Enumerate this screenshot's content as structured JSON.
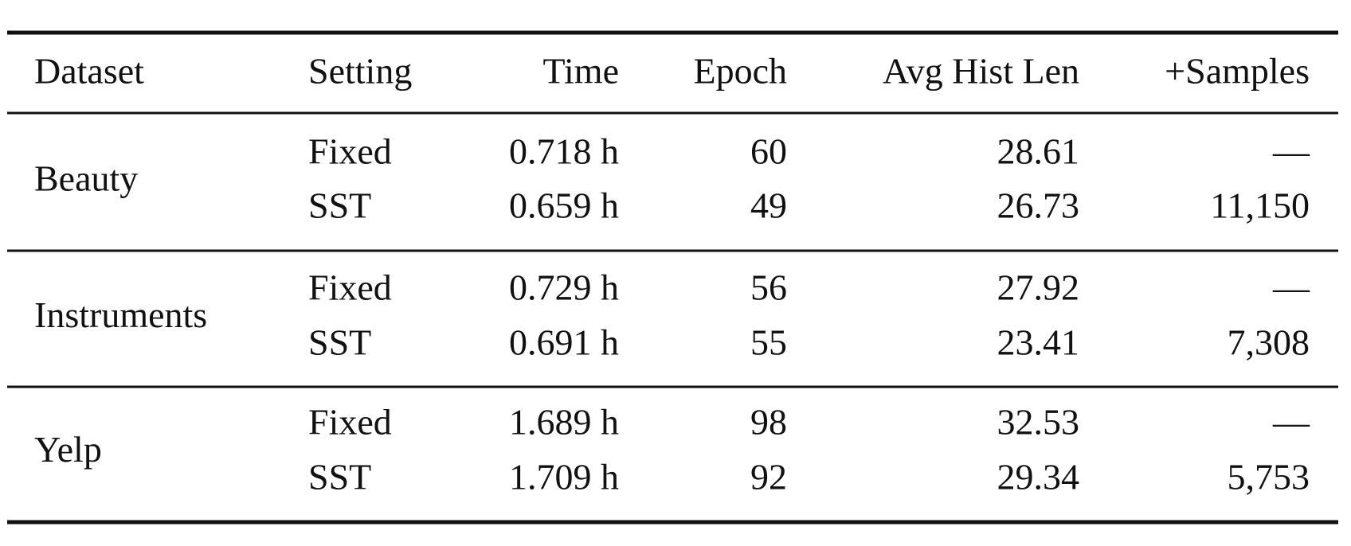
{
  "table": {
    "header": [
      "Dataset",
      "Setting",
      "Time",
      "Epoch",
      "Avg Hist Len",
      "+Samples"
    ],
    "groups": [
      {
        "dataset": "Beauty",
        "rows": [
          [
            "Fixed",
            "0.718 h",
            "60",
            "28.61",
            "—"
          ],
          [
            "SST",
            "0.659 h",
            "49",
            "26.73",
            "11,150"
          ]
        ]
      },
      {
        "dataset": "Instruments",
        "rows": [
          [
            "Fixed",
            "0.729 h",
            "56",
            "27.92",
            "—"
          ],
          [
            "SST",
            "0.691 h",
            "55",
            "23.41",
            "7,308"
          ]
        ]
      },
      {
        "dataset": "Yelp",
        "rows": [
          [
            "Fixed",
            "1.689 h",
            "98",
            "32.53",
            "—"
          ],
          [
            "SST",
            "1.709 h",
            "92",
            "29.34",
            "5,753"
          ]
        ]
      }
    ]
  }
}
